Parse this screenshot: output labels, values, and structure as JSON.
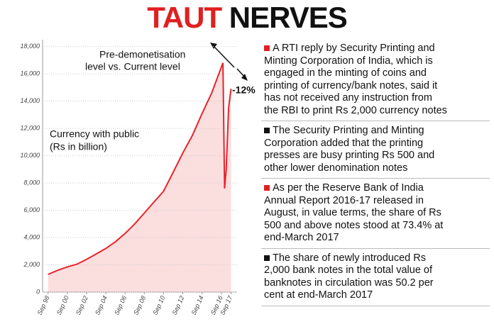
{
  "header": {
    "title_words": [
      "TAUT",
      "NERVES"
    ],
    "title_colors": [
      "#e02020",
      "#111111"
    ]
  },
  "chart_data": {
    "type": "line",
    "annotations": [
      "Pre-demonetisation",
      "level vs. Current level",
      "-12%",
      "Currency with public",
      "(Rs in billion)"
    ],
    "x": [
      1998.67,
      1999.67,
      2000.67,
      2001.67,
      2002.67,
      2003.67,
      2004.67,
      2005.67,
      2006.67,
      2007.67,
      2008.67,
      2009.67,
      2010.67,
      2011.67,
      2012.67,
      2013.67,
      2014.67,
      2015.67,
      2016.25,
      2016.83,
      2017.0,
      2017.17,
      2017.42,
      2017.67
    ],
    "values": [
      1300,
      1600,
      1850,
      2050,
      2400,
      2800,
      3200,
      3700,
      4300,
      5000,
      5800,
      6600,
      7400,
      8800,
      10200,
      11500,
      13100,
      14600,
      15700,
      16800,
      7600,
      9000,
      13500,
      14900
    ],
    "color": "#e8232a",
    "fill": "#fbdede",
    "xlim": [
      1998.1,
      2018.3
    ],
    "xticks": [
      {
        "value": 1998.67,
        "label": "Sep 98"
      },
      {
        "value": 2000.67,
        "label": "Sep 00"
      },
      {
        "value": 2002.67,
        "label": "Sep 02"
      },
      {
        "value": 2004.67,
        "label": "Sep 04"
      },
      {
        "value": 2006.67,
        "label": "Sep 06"
      },
      {
        "value": 2008.67,
        "label": "Sep 08"
      },
      {
        "value": 2010.67,
        "label": "Sep 10"
      },
      {
        "value": 2012.67,
        "label": "Sep 12"
      },
      {
        "value": 2014.67,
        "label": "Sep 14"
      },
      {
        "value": 2016.67,
        "label": "Sep 16"
      },
      {
        "value": 2017.67,
        "label": "Sep 17"
      }
    ],
    "ylim": [
      0,
      18500
    ],
    "yticks": [
      0,
      {
        "value": 2000,
        "label": "2,000"
      },
      {
        "value": 4000,
        "label": "4,000"
      },
      {
        "value": 6000,
        "label": "6,000"
      },
      {
        "value": 8000,
        "label": "8,000"
      },
      {
        "value": 10000,
        "label": "10,000"
      },
      {
        "value": 12000,
        "label": "12,000"
      },
      {
        "value": 14000,
        "label": "14,000"
      },
      {
        "value": 16000,
        "label": "16,000"
      },
      {
        "value": 18000,
        "label": "18,000"
      }
    ],
    "grid": true
  },
  "bullets": [
    {
      "marker_color": "#e02020",
      "lines": [
        "A RTI reply by Security Printing and",
        "Minting Corporation of India, which is",
        "engaged in the minting of coins and",
        "printing of currency/bank notes, said it",
        "has not received any instruction from",
        "the RBI to print Rs 2,000 currency notes"
      ]
    },
    {
      "marker_color": "#111111",
      "lines": [
        "The Security Printing and Minting",
        "Corporation added that the printing",
        "presses are busy printing Rs 500 and",
        "other lower denomination notes"
      ]
    },
    {
      "marker_color": "#e02020",
      "lines": [
        "As per the Reserve Bank of India",
        "Annual Report 2016-17 released in",
        "August, in value terms, the share of Rs",
        "500 and above notes stood at 73.4% at",
        "end-March 2017"
      ]
    },
    {
      "marker_color": "#111111",
      "lines": [
        "The share of newly introduced Rs",
        "2,000 bank notes in the total value of",
        "banknotes in circulation was 50.2 per",
        "cent at end-March 2017"
      ]
    }
  ]
}
